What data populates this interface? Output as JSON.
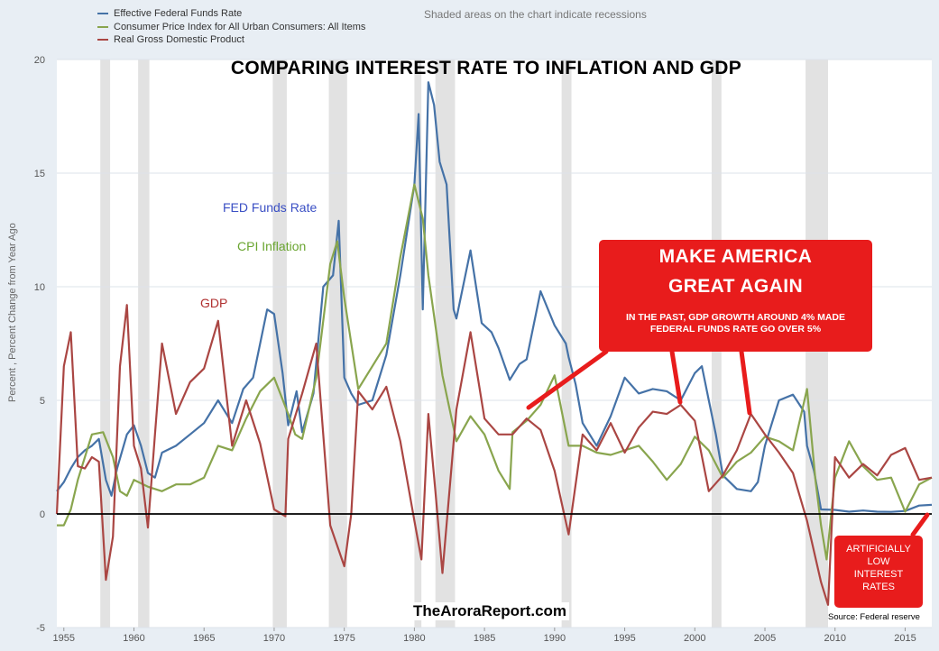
{
  "legend": [
    {
      "name": "Effective Federal Funds Rate",
      "color": "#4572a7"
    },
    {
      "name": "Consumer Price Index for All Urban Consumers: All Items",
      "color": "#89a54e"
    },
    {
      "name": "Real Gross Domestic Product",
      "color": "#aa4643"
    }
  ],
  "recession_note": "Shaded areas on the chart indicate   recessions",
  "ylabel": "Percent , Percent Change from Year Ago",
  "labels": {
    "fed": "FED Funds Rate",
    "cpi": "CPI Inflation",
    "gdp": "GDP"
  },
  "callout": {
    "line1": "MAKE AMERICA",
    "line2": "GREAT AGAIN",
    "body": "IN THE PAST, GDP GROWTH AROUND 4% MADE FEDERAL FUNDS RATE GO OVER 5%"
  },
  "low_rates": [
    "ARTIFICIALLY",
    "LOW",
    "INTEREST",
    "RATES"
  ],
  "watermark": "TheAroraReport.com",
  "source": "Source: Federal reserve",
  "chart_data": {
    "type": "line",
    "title": "COMPARING INTEREST RATE TO INFLATION AND GDP",
    "xlabel": "",
    "ylabel": "Percent , Percent Change from Year Ago",
    "xlim": [
      1954.5,
      2016.9
    ],
    "ylim": [
      -5,
      20
    ],
    "yticks": [
      -5,
      0,
      5,
      10,
      15,
      20
    ],
    "xticks": [
      1955,
      1960,
      1965,
      1970,
      1975,
      1980,
      1985,
      1990,
      1995,
      2000,
      2005,
      2010,
      2015
    ],
    "recessions": [
      [
        1957.6,
        1958.3
      ],
      [
        1960.3,
        1961.1
      ],
      [
        1969.9,
        1970.9
      ],
      [
        1973.9,
        1975.2
      ],
      [
        1980.0,
        1980.5
      ],
      [
        1981.5,
        1982.9
      ],
      [
        1990.5,
        1991.2
      ],
      [
        2001.2,
        2001.9
      ],
      [
        2007.9,
        2009.5
      ]
    ],
    "series": [
      {
        "name": "Effective Federal Funds Rate",
        "color": "#4572a7",
        "points": [
          [
            1954.5,
            1.0
          ],
          [
            1955,
            1.4
          ],
          [
            1955.5,
            2.0
          ],
          [
            1956,
            2.5
          ],
          [
            1956.5,
            2.8
          ],
          [
            1957,
            3.0
          ],
          [
            1957.5,
            3.3
          ],
          [
            1958,
            1.5
          ],
          [
            1958.4,
            0.8
          ],
          [
            1958.8,
            2.0
          ],
          [
            1959.5,
            3.5
          ],
          [
            1960,
            3.9
          ],
          [
            1960.5,
            3.0
          ],
          [
            1961,
            1.8
          ],
          [
            1961.5,
            1.6
          ],
          [
            1962,
            2.7
          ],
          [
            1963,
            3.0
          ],
          [
            1964,
            3.5
          ],
          [
            1965,
            4.0
          ],
          [
            1966,
            5.0
          ],
          [
            1967,
            4.0
          ],
          [
            1967.8,
            5.5
          ],
          [
            1968.5,
            6.0
          ],
          [
            1969.5,
            9.0
          ],
          [
            1970,
            8.8
          ],
          [
            1970.6,
            6.2
          ],
          [
            1971,
            3.9
          ],
          [
            1971.6,
            5.4
          ],
          [
            1972,
            3.6
          ],
          [
            1972.8,
            5.3
          ],
          [
            1973.5,
            10.0
          ],
          [
            1974.2,
            10.5
          ],
          [
            1974.6,
            12.9
          ],
          [
            1975,
            6.0
          ],
          [
            1975.5,
            5.3
          ],
          [
            1976,
            4.8
          ],
          [
            1977,
            5.0
          ],
          [
            1978,
            7.0
          ],
          [
            1979,
            10.5
          ],
          [
            1980,
            14.5
          ],
          [
            1980.3,
            17.6
          ],
          [
            1980.6,
            9.0
          ],
          [
            1981,
            19.0
          ],
          [
            1981.4,
            18.0
          ],
          [
            1981.8,
            15.5
          ],
          [
            1982.3,
            14.5
          ],
          [
            1982.8,
            9.0
          ],
          [
            1983,
            8.6
          ],
          [
            1984,
            11.6
          ],
          [
            1984.8,
            8.4
          ],
          [
            1985.5,
            8.0
          ],
          [
            1986,
            7.3
          ],
          [
            1986.8,
            5.9
          ],
          [
            1987.5,
            6.6
          ],
          [
            1988,
            6.8
          ],
          [
            1989,
            9.8
          ],
          [
            1990,
            8.3
          ],
          [
            1990.8,
            7.5
          ],
          [
            1991,
            6.9
          ],
          [
            1991.5,
            5.7
          ],
          [
            1992,
            4.0
          ],
          [
            1993,
            3.0
          ],
          [
            1994,
            4.3
          ],
          [
            1995,
            6.0
          ],
          [
            1996,
            5.3
          ],
          [
            1997,
            5.5
          ],
          [
            1998,
            5.4
          ],
          [
            1999,
            5.0
          ],
          [
            2000,
            6.2
          ],
          [
            2000.5,
            6.5
          ],
          [
            2001,
            5.0
          ],
          [
            2001.5,
            3.5
          ],
          [
            2002,
            1.7
          ],
          [
            2003,
            1.1
          ],
          [
            2004,
            1.0
          ],
          [
            2004.5,
            1.4
          ],
          [
            2005,
            3.0
          ],
          [
            2006,
            5.0
          ],
          [
            2007,
            5.25
          ],
          [
            2007.8,
            4.5
          ],
          [
            2008,
            3.0
          ],
          [
            2008.5,
            1.9
          ],
          [
            2009,
            0.2
          ],
          [
            2010,
            0.18
          ],
          [
            2011,
            0.1
          ],
          [
            2012,
            0.15
          ],
          [
            2013,
            0.1
          ],
          [
            2014,
            0.09
          ],
          [
            2015,
            0.13
          ],
          [
            2016,
            0.37
          ],
          [
            2016.9,
            0.4
          ]
        ]
      },
      {
        "name": "Consumer Price Index for All Urban Consumers: All Items",
        "color": "#89a54e",
        "points": [
          [
            1954.5,
            -0.5
          ],
          [
            1955,
            -0.5
          ],
          [
            1955.5,
            0.2
          ],
          [
            1956,
            1.5
          ],
          [
            1957,
            3.5
          ],
          [
            1957.8,
            3.6
          ],
          [
            1958.5,
            2.5
          ],
          [
            1959,
            1.0
          ],
          [
            1959.5,
            0.8
          ],
          [
            1960,
            1.5
          ],
          [
            1961,
            1.2
          ],
          [
            1962,
            1.0
          ],
          [
            1963,
            1.3
          ],
          [
            1964,
            1.3
          ],
          [
            1965,
            1.6
          ],
          [
            1966,
            3.0
          ],
          [
            1967,
            2.8
          ],
          [
            1968,
            4.2
          ],
          [
            1969,
            5.4
          ],
          [
            1970,
            6.0
          ],
          [
            1971,
            4.4
          ],
          [
            1971.5,
            3.5
          ],
          [
            1972,
            3.3
          ],
          [
            1973,
            6.0
          ],
          [
            1974,
            11.0
          ],
          [
            1974.5,
            12.0
          ],
          [
            1975,
            9.5
          ],
          [
            1976,
            5.5
          ],
          [
            1977,
            6.5
          ],
          [
            1978,
            7.5
          ],
          [
            1979,
            11.3
          ],
          [
            1980,
            14.5
          ],
          [
            1980.6,
            13.0
          ],
          [
            1981,
            10.5
          ],
          [
            1982,
            6.1
          ],
          [
            1983,
            3.2
          ],
          [
            1984,
            4.3
          ],
          [
            1985,
            3.5
          ],
          [
            1986,
            1.9
          ],
          [
            1986.8,
            1.1
          ],
          [
            1987,
            3.6
          ],
          [
            1988,
            4.1
          ],
          [
            1989,
            4.8
          ],
          [
            1990,
            6.1
          ],
          [
            1991,
            3.0
          ],
          [
            1992,
            3.0
          ],
          [
            1993,
            2.7
          ],
          [
            1994,
            2.6
          ],
          [
            1995,
            2.8
          ],
          [
            1996,
            3.0
          ],
          [
            1997,
            2.3
          ],
          [
            1998,
            1.5
          ],
          [
            1999,
            2.2
          ],
          [
            2000,
            3.4
          ],
          [
            2001,
            2.8
          ],
          [
            2002,
            1.6
          ],
          [
            2003,
            2.3
          ],
          [
            2004,
            2.7
          ],
          [
            2005,
            3.4
          ],
          [
            2006,
            3.2
          ],
          [
            2007,
            2.8
          ],
          [
            2008,
            5.5
          ],
          [
            2008.6,
            1.5
          ],
          [
            2009,
            -0.5
          ],
          [
            2009.4,
            -2.0
          ],
          [
            2010,
            1.6
          ],
          [
            2011,
            3.2
          ],
          [
            2012,
            2.1
          ],
          [
            2013,
            1.5
          ],
          [
            2014,
            1.6
          ],
          [
            2015,
            0.1
          ],
          [
            2016,
            1.3
          ],
          [
            2016.9,
            1.6
          ]
        ]
      },
      {
        "name": "Real Gross Domestic Product",
        "color": "#aa4643",
        "points": [
          [
            1954.5,
            0.0
          ],
          [
            1955,
            6.5
          ],
          [
            1955.5,
            8.0
          ],
          [
            1956,
            2.1
          ],
          [
            1956.5,
            2.0
          ],
          [
            1957,
            2.5
          ],
          [
            1957.5,
            2.3
          ],
          [
            1958,
            -2.9
          ],
          [
            1958.5,
            -1.0
          ],
          [
            1959,
            6.5
          ],
          [
            1959.5,
            9.2
          ],
          [
            1960,
            3.0
          ],
          [
            1960.5,
            2.0
          ],
          [
            1961,
            -0.6
          ],
          [
            1961.5,
            3.5
          ],
          [
            1962,
            7.5
          ],
          [
            1963,
            4.4
          ],
          [
            1964,
            5.8
          ],
          [
            1965,
            6.4
          ],
          [
            1966,
            8.5
          ],
          [
            1967,
            3.0
          ],
          [
            1968,
            5.0
          ],
          [
            1969,
            3.1
          ],
          [
            1970,
            0.2
          ],
          [
            1970.8,
            -0.1
          ],
          [
            1971,
            3.3
          ],
          [
            1972,
            5.3
          ],
          [
            1973,
            7.5
          ],
          [
            1974,
            -0.5
          ],
          [
            1975,
            -2.3
          ],
          [
            1975.5,
            0.0
          ],
          [
            1976,
            5.4
          ],
          [
            1977,
            4.6
          ],
          [
            1978,
            5.6
          ],
          [
            1979,
            3.2
          ],
          [
            1980,
            -0.3
          ],
          [
            1980.5,
            -2.0
          ],
          [
            1981,
            4.4
          ],
          [
            1981.5,
            1.0
          ],
          [
            1982,
            -2.6
          ],
          [
            1983,
            4.6
          ],
          [
            1984,
            8.0
          ],
          [
            1985,
            4.2
          ],
          [
            1986,
            3.5
          ],
          [
            1987,
            3.5
          ],
          [
            1988,
            4.2
          ],
          [
            1989,
            3.7
          ],
          [
            1990,
            1.9
          ],
          [
            1991,
            -0.9
          ],
          [
            1992,
            3.5
          ],
          [
            1993,
            2.8
          ],
          [
            1994,
            4.0
          ],
          [
            1995,
            2.7
          ],
          [
            1996,
            3.8
          ],
          [
            1997,
            4.5
          ],
          [
            1998,
            4.4
          ],
          [
            1999,
            4.8
          ],
          [
            2000,
            4.1
          ],
          [
            2001,
            1.0
          ],
          [
            2002,
            1.7
          ],
          [
            2003,
            2.8
          ],
          [
            2004,
            4.4
          ],
          [
            2005,
            3.5
          ],
          [
            2006,
            2.7
          ],
          [
            2007,
            1.8
          ],
          [
            2008,
            -0.3
          ],
          [
            2009,
            -3.0
          ],
          [
            2009.5,
            -4.0
          ],
          [
            2010,
            2.5
          ],
          [
            2011,
            1.6
          ],
          [
            2012,
            2.2
          ],
          [
            2013,
            1.7
          ],
          [
            2014,
            2.6
          ],
          [
            2015,
            2.9
          ],
          [
            2016,
            1.5
          ],
          [
            2016.9,
            1.6
          ]
        ]
      }
    ]
  }
}
